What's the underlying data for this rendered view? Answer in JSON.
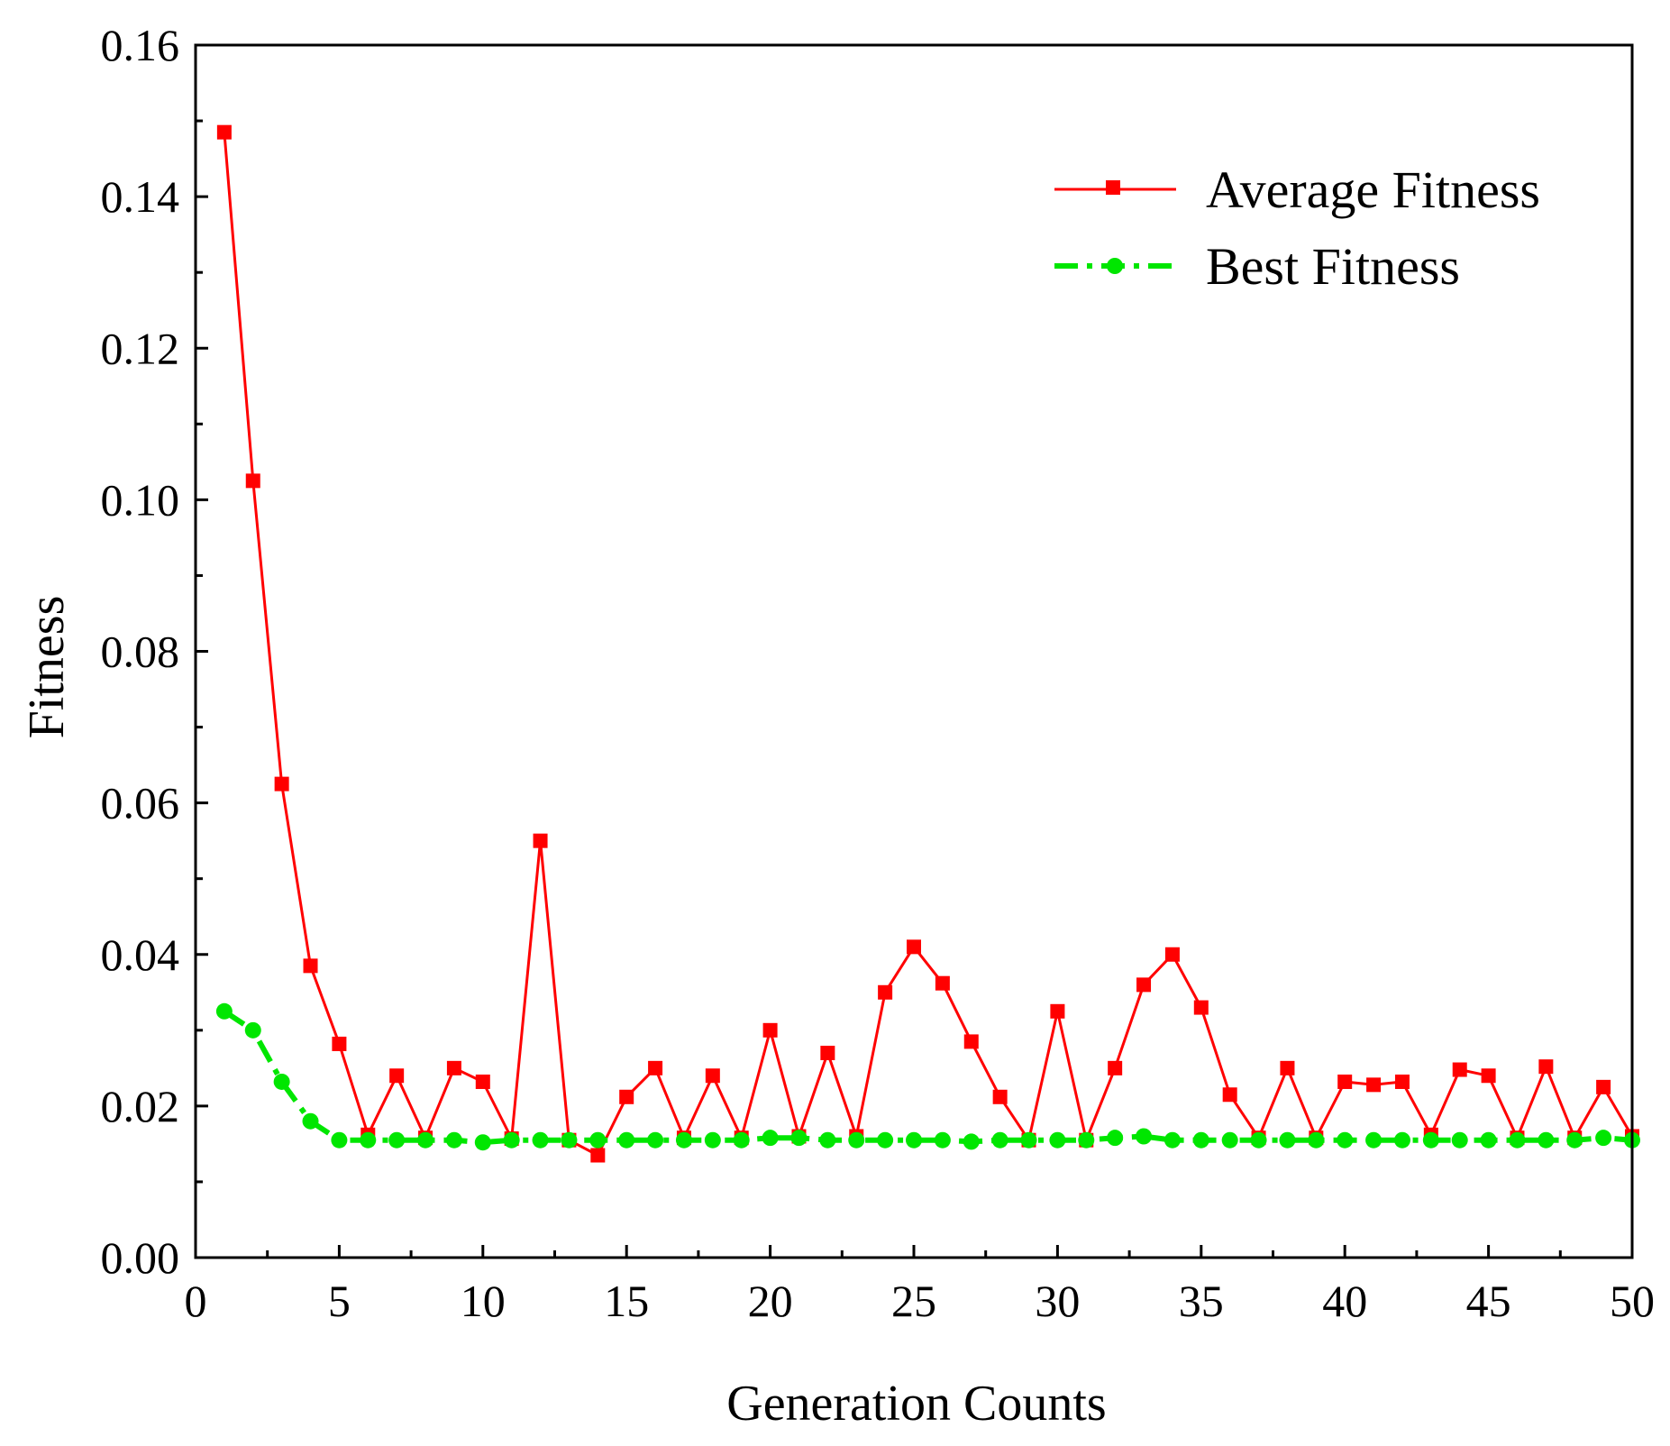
{
  "chart_data": {
    "type": "line",
    "xlabel": "Generation Counts",
    "ylabel": "Fitness",
    "xlim": [
      0,
      50
    ],
    "ylim": [
      0,
      0.16
    ],
    "x_ticks": [
      "0",
      "5",
      "10",
      "15",
      "20",
      "25",
      "30",
      "35",
      "40",
      "45",
      "50"
    ],
    "y_ticks": [
      "0.00",
      "0.02",
      "0.04",
      "0.06",
      "0.08",
      "0.10",
      "0.12",
      "0.14",
      "0.16"
    ],
    "grid": false,
    "legend_position": "top-right",
    "x": [
      1,
      2,
      3,
      4,
      5,
      6,
      7,
      8,
      9,
      10,
      11,
      12,
      13,
      14,
      15,
      16,
      17,
      18,
      19,
      20,
      21,
      22,
      23,
      24,
      25,
      26,
      27,
      28,
      29,
      30,
      31,
      32,
      33,
      34,
      35,
      36,
      37,
      38,
      39,
      40,
      41,
      42,
      43,
      44,
      45,
      46,
      47,
      48,
      49,
      50
    ],
    "series": [
      {
        "name": "Average Fitness",
        "color": "#ff0000",
        "line_style": "solid",
        "marker": "square",
        "values": [
          0.1485,
          0.1025,
          0.0625,
          0.0385,
          0.0282,
          0.0162,
          0.024,
          0.0158,
          0.025,
          0.0232,
          0.0157,
          0.055,
          0.0155,
          0.0135,
          0.0212,
          0.025,
          0.0158,
          0.024,
          0.0158,
          0.03,
          0.016,
          0.027,
          0.016,
          0.035,
          0.041,
          0.0362,
          0.0285,
          0.0212,
          0.0155,
          0.0325,
          0.0155,
          0.025,
          0.036,
          0.04,
          0.033,
          0.0215,
          0.0158,
          0.025,
          0.0158,
          0.0232,
          0.0228,
          0.0232,
          0.0162,
          0.0248,
          0.024,
          0.0158,
          0.0252,
          0.0158,
          0.0225,
          0.016
        ]
      },
      {
        "name": "Best Fitness",
        "color": "#00e600",
        "line_style": "dash-dot",
        "marker": "circle",
        "values": [
          0.0325,
          0.03,
          0.0232,
          0.018,
          0.0155,
          0.0155,
          0.0155,
          0.0155,
          0.0155,
          0.0152,
          0.0155,
          0.0155,
          0.0155,
          0.0155,
          0.0155,
          0.0155,
          0.0155,
          0.0155,
          0.0155,
          0.0158,
          0.0158,
          0.0155,
          0.0155,
          0.0155,
          0.0155,
          0.0155,
          0.0153,
          0.0155,
          0.0155,
          0.0155,
          0.0155,
          0.0158,
          0.016,
          0.0155,
          0.0155,
          0.0155,
          0.0155,
          0.0155,
          0.0155,
          0.0155,
          0.0155,
          0.0155,
          0.0155,
          0.0155,
          0.0155,
          0.0155,
          0.0155,
          0.0155,
          0.0158,
          0.0155
        ]
      }
    ]
  }
}
